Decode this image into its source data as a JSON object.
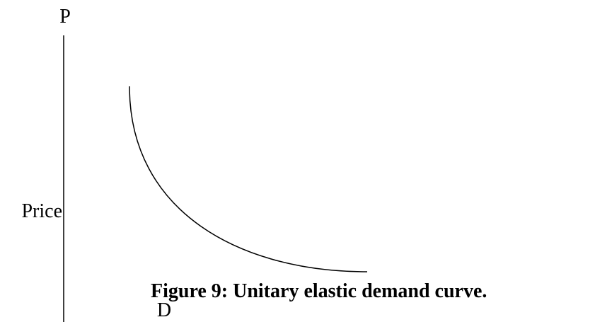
{
  "axis": {
    "label": "P",
    "title": "Price"
  },
  "curve": {
    "label": "D"
  },
  "caption": "Figure 9: Unitary elastic demand curve."
}
